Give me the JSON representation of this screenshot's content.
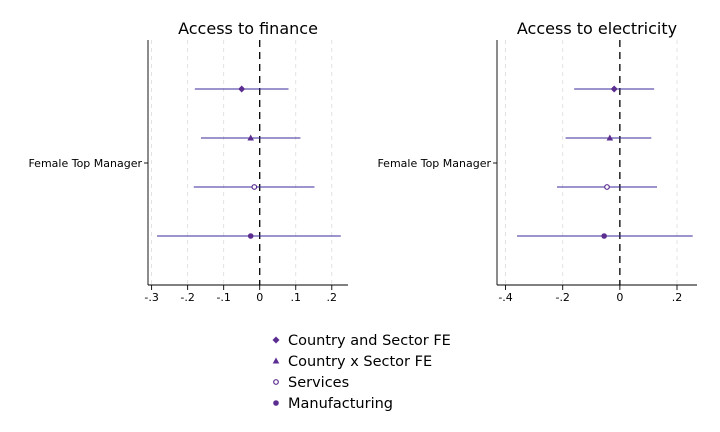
{
  "chart_data": [
    {
      "type": "coefficient-plot",
      "title": "Access to finance",
      "y_category": "Female Top Manager",
      "xlim": [
        -0.31,
        0.245
      ],
      "x_ticks": [
        -0.3,
        -0.2,
        -0.1,
        0,
        0.1,
        0.2
      ],
      "x_tick_labels": [
        "-.3",
        "-.2",
        "-.1",
        "0",
        ".1",
        ".2"
      ],
      "reference_line_x": 0,
      "grid": "vertical dashed",
      "series": [
        {
          "name": "Country and Sector FE",
          "estimate": -0.05,
          "ci": [
            -0.18,
            0.08
          ]
        },
        {
          "name": "Country x Sector FE",
          "estimate": -0.025,
          "ci": [
            -0.163,
            0.113
          ]
        },
        {
          "name": "Services",
          "estimate": -0.015,
          "ci": [
            -0.183,
            0.152
          ]
        },
        {
          "name": "Manufacturing",
          "estimate": -0.025,
          "ci": [
            -0.285,
            0.225
          ]
        }
      ]
    },
    {
      "type": "coefficient-plot",
      "title": "Access to electricity",
      "y_category": "Female Top Manager",
      "xlim": [
        -0.43,
        0.27
      ],
      "x_ticks": [
        -0.4,
        -0.2,
        0,
        0.2
      ],
      "x_tick_labels": [
        "-.4",
        "-.2",
        "0",
        ".2"
      ],
      "reference_line_x": 0,
      "grid": "vertical dashed",
      "series": [
        {
          "name": "Country and Sector FE",
          "estimate": -0.02,
          "ci": [
            -0.16,
            0.12
          ]
        },
        {
          "name": "Country x Sector FE",
          "estimate": -0.035,
          "ci": [
            -0.19,
            0.11
          ]
        },
        {
          "name": "Services",
          "estimate": -0.045,
          "ci": [
            -0.22,
            0.13
          ]
        },
        {
          "name": "Manufacturing",
          "estimate": -0.055,
          "ci": [
            -0.36,
            0.255
          ]
        }
      ]
    }
  ],
  "legend": {
    "placement": "bottom-center",
    "items": [
      {
        "label": "Country and Sector FE",
        "marker": "diamond"
      },
      {
        "label": "Country x Sector FE",
        "marker": "triangle"
      },
      {
        "label": "Services",
        "marker": "hollow-circle"
      },
      {
        "label": "Manufacturing",
        "marker": "circle"
      }
    ]
  },
  "colors": {
    "series": "#5b2d90",
    "ci_line": "#3a2a9a",
    "reference_line": "#000000",
    "grid": "#dcdcdc"
  }
}
